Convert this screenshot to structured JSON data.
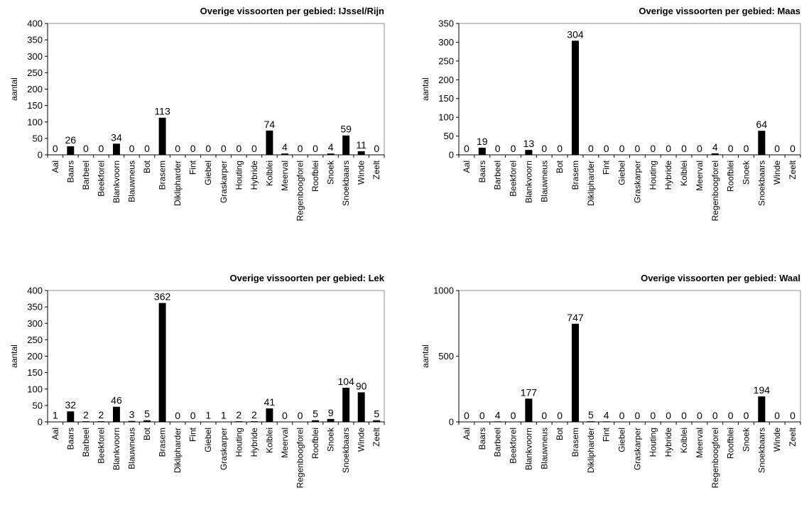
{
  "chart_data": [
    {
      "type": "bar",
      "title": "Overige vissoorten per gebied: IJssel/Rijn",
      "ylabel": "aantal",
      "ylim": [
        0,
        400
      ],
      "yticks": [
        0,
        50,
        100,
        150,
        200,
        250,
        300,
        350,
        400
      ],
      "grid": false,
      "categories": [
        "Aal",
        "Baars",
        "Barbeel",
        "Beekforel",
        "Blankvoorn",
        "Blauwneus",
        "Bot",
        "Brasem",
        "Diklipharder",
        "Fint",
        "Giebel",
        "Graskarper",
        "Houting",
        "Hybride",
        "Kolblei",
        "Meerval",
        "Regenboogforel",
        "Roofblei",
        "Snoek",
        "Snoekbaars",
        "Winde",
        "Zeelt"
      ],
      "values": [
        0,
        26,
        0,
        0,
        34,
        0,
        0,
        113,
        0,
        0,
        0,
        0,
        0,
        0,
        74,
        4,
        0,
        0,
        4,
        59,
        11,
        0
      ]
    },
    {
      "type": "bar",
      "title": "Overige vissoorten per gebied: Maas",
      "ylabel": "aantal",
      "ylim": [
        0,
        350
      ],
      "yticks": [
        0,
        50,
        100,
        150,
        200,
        250,
        300,
        350
      ],
      "grid": false,
      "categories": [
        "Aal",
        "Baars",
        "Barbeel",
        "Beekforel",
        "Blankvoorn",
        "Blauwneus",
        "Bot",
        "Brasem",
        "Diklipharder",
        "Fint",
        "Giebel",
        "Graskarper",
        "Houting",
        "Hybride",
        "Kolblei",
        "Meerval",
        "Regenboogforel",
        "Roofblei",
        "Snoek",
        "Snoekbaars",
        "Winde",
        "Zeelt"
      ],
      "values": [
        0,
        19,
        0,
        0,
        13,
        0,
        0,
        304,
        0,
        0,
        0,
        0,
        0,
        0,
        0,
        0,
        4,
        0,
        0,
        64,
        0,
        0
      ]
    },
    {
      "type": "bar",
      "title": "Overige vissoorten per gebied: Lek",
      "ylabel": "aantal",
      "ylim": [
        0,
        400
      ],
      "yticks": [
        0,
        50,
        100,
        150,
        200,
        250,
        300,
        350,
        400
      ],
      "grid": false,
      "categories": [
        "Aal",
        "Baars",
        "Barbeel",
        "Beekforel",
        "Blankvoorn",
        "Blauwneus",
        "Bot",
        "Brasem",
        "Diklipharder",
        "Fint",
        "Giebel",
        "Graskarper",
        "Houting",
        "Hybride",
        "Kolblei",
        "Meerval",
        "Regenboogforel",
        "Roofblei",
        "Snoek",
        "Snoekbaars",
        "Winde",
        "Zeelt"
      ],
      "values": [
        1,
        32,
        2,
        2,
        46,
        3,
        5,
        362,
        0,
        0,
        1,
        1,
        2,
        2,
        41,
        0,
        0,
        5,
        9,
        104,
        90,
        5
      ]
    },
    {
      "type": "bar",
      "title": "Overige vissoorten per gebied: Waal",
      "ylabel": "aantal",
      "ylim": [
        0,
        1000
      ],
      "yticks": [
        0,
        500,
        1000
      ],
      "grid": false,
      "categories": [
        "Aal",
        "Baars",
        "Barbeel",
        "Beekforel",
        "Blankvoorn",
        "Blauwneus",
        "Bot",
        "Brasem",
        "Diklipharder",
        "Fint",
        "Giebel",
        "Graskarper",
        "Houting",
        "Hybride",
        "Kolblei",
        "Meerval",
        "Regenboogforel",
        "Roofblei",
        "Snoek",
        "Snoekbaars",
        "Winde",
        "Zeelt"
      ],
      "values": [
        0,
        0,
        4,
        0,
        177,
        0,
        0,
        747,
        5,
        4,
        0,
        0,
        0,
        0,
        0,
        0,
        0,
        0,
        0,
        194,
        0,
        0
      ]
    }
  ],
  "colors": {
    "bar": "#000000",
    "axis": "#000000",
    "text": "#000000",
    "background": "#ffffff"
  }
}
